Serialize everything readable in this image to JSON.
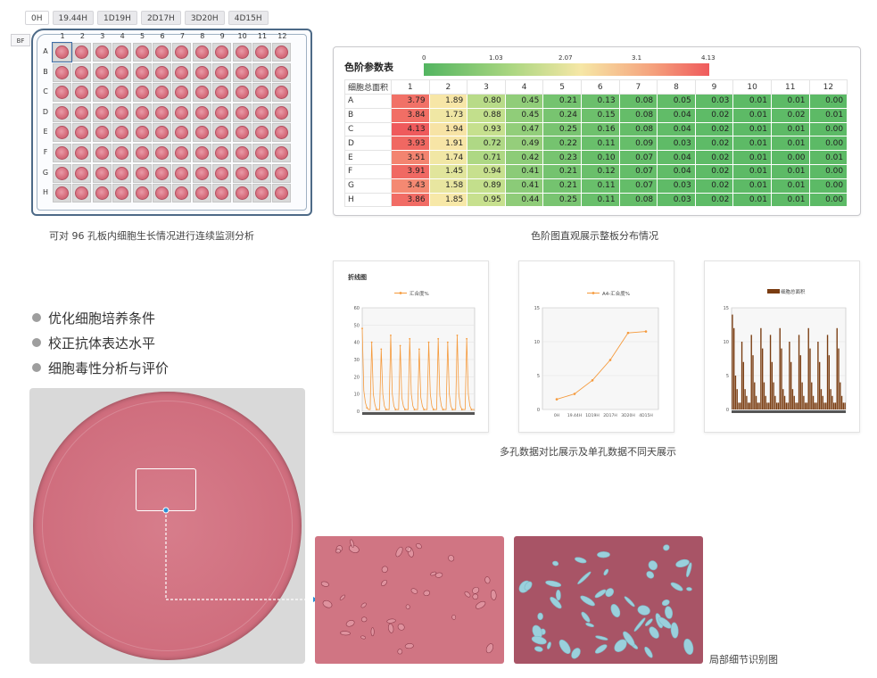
{
  "time_tabs": [
    "0H",
    "19.44H",
    "1D19H",
    "2D17H",
    "3D20H",
    "4D15H"
  ],
  "active_tab": 0,
  "bf_label": "BF",
  "plate": {
    "columns": [
      "1",
      "2",
      "3",
      "4",
      "5",
      "6",
      "7",
      "8",
      "9",
      "10",
      "11",
      "12"
    ],
    "rows": [
      "A",
      "B",
      "C",
      "D",
      "E",
      "F",
      "G",
      "H"
    ],
    "selected_well": "A1"
  },
  "captions": {
    "plate": "可对 96 孔板内细胞生长情况进行连续监测分析",
    "heatmap": "色阶图直观展示整板分布情况",
    "charts": "多孔数据对比展示及单孔数据不同天展示",
    "detail": "局部细节识别图"
  },
  "heatmap": {
    "title": "色阶参数表",
    "scale_ticks": [
      "0",
      "1.03",
      "2.07",
      "3.1",
      "4.13"
    ],
    "scale_max": 4.13,
    "corner_label": "细胞总面积",
    "columns": [
      "1",
      "2",
      "3",
      "4",
      "5",
      "6",
      "7",
      "8",
      "9",
      "10",
      "11",
      "12"
    ],
    "rows": [
      {
        "label": "A",
        "values": [
          "3.79",
          "1.89",
          "0.80",
          "0.45",
          "0.21",
          "0.13",
          "0.08",
          "0.05",
          "0.03",
          "0.01",
          "0.01",
          "0.00"
        ]
      },
      {
        "label": "B",
        "values": [
          "3.84",
          "1.73",
          "0.88",
          "0.45",
          "0.24",
          "0.15",
          "0.08",
          "0.04",
          "0.02",
          "0.01",
          "0.02",
          "0.01"
        ]
      },
      {
        "label": "C",
        "values": [
          "4.13",
          "1.94",
          "0.93",
          "0.47",
          "0.25",
          "0.16",
          "0.08",
          "0.04",
          "0.02",
          "0.01",
          "0.01",
          "0.00"
        ]
      },
      {
        "label": "D",
        "values": [
          "3.93",
          "1.91",
          "0.72",
          "0.49",
          "0.22",
          "0.11",
          "0.09",
          "0.03",
          "0.02",
          "0.01",
          "0.01",
          "0.00"
        ]
      },
      {
        "label": "E",
        "values": [
          "3.51",
          "1.74",
          "0.71",
          "0.42",
          "0.23",
          "0.10",
          "0.07",
          "0.04",
          "0.02",
          "0.01",
          "0.00",
          "0.01"
        ]
      },
      {
        "label": "F",
        "values": [
          "3.91",
          "1.45",
          "0.94",
          "0.41",
          "0.21",
          "0.12",
          "0.07",
          "0.04",
          "0.02",
          "0.01",
          "0.01",
          "0.00"
        ]
      },
      {
        "label": "G",
        "values": [
          "3.43",
          "1.58",
          "0.89",
          "0.41",
          "0.21",
          "0.11",
          "0.07",
          "0.03",
          "0.02",
          "0.01",
          "0.01",
          "0.00"
        ]
      },
      {
        "label": "H",
        "values": [
          "3.86",
          "1.85",
          "0.95",
          "0.44",
          "0.25",
          "0.11",
          "0.08",
          "0.03",
          "0.02",
          "0.01",
          "0.01",
          "0.00"
        ]
      }
    ]
  },
  "bullets": [
    "优化细胞培养条件",
    "校正抗体表达水平",
    "细胞毒性分析与评价"
  ],
  "colors": {
    "accent_orange": "#f59a3c",
    "bar_brown": "#7a3d12",
    "well_pink": "#d8707f",
    "scale_low": "#53b561",
    "scale_mid": "#f6e7a6",
    "scale_high": "#ef5a5c",
    "overlay_cyan": "#9ad0dc"
  },
  "chart_data": [
    {
      "type": "line",
      "title": "折线图",
      "legend": "汇合度%",
      "ylim": [
        0,
        60
      ],
      "yticks": [
        "0",
        "10",
        "20",
        "30",
        "40",
        "50",
        "60"
      ],
      "series": [
        {
          "name": "汇合度%",
          "values": [
            48,
            12,
            5,
            2,
            1,
            1,
            40,
            10,
            4,
            1,
            1,
            1,
            36,
            10,
            3,
            1,
            1,
            1,
            44,
            10,
            3,
            1,
            1,
            1,
            38,
            8,
            3,
            1,
            1,
            1,
            42,
            10,
            3,
            1,
            1,
            1,
            36,
            8,
            3,
            1,
            1,
            1,
            40,
            10,
            3,
            1,
            1,
            1,
            42,
            9,
            3,
            1,
            1,
            1,
            40,
            10,
            3,
            1,
            1,
            1,
            44,
            10,
            3,
            1,
            1,
            1,
            42,
            10,
            3,
            1,
            1,
            1
          ]
        }
      ]
    },
    {
      "type": "line",
      "legend": "A4-汇合度%",
      "ylim": [
        0,
        15
      ],
      "yticks": [
        "0",
        "5",
        "10",
        "15"
      ],
      "categories": [
        "0H",
        "19.44H",
        "1D19H",
        "2D17H",
        "3D20H",
        "4D15H"
      ],
      "series": [
        {
          "name": "A4-汇合度%",
          "values": [
            1.5,
            2.3,
            4.3,
            7.3,
            11.3,
            11.5
          ]
        }
      ]
    },
    {
      "type": "bar",
      "legend": "细胞总面积",
      "ylim": [
        0,
        15
      ],
      "yticks": [
        "0",
        "5",
        "10",
        "15"
      ],
      "series": [
        {
          "name": "细胞总面积",
          "values": [
            14,
            12,
            5,
            3,
            1,
            1,
            10,
            7,
            3,
            2,
            1,
            1,
            11,
            8,
            4,
            2,
            1,
            1,
            12,
            9,
            4,
            2,
            1,
            1,
            11,
            7,
            4,
            2,
            1,
            1,
            12,
            9,
            3,
            2,
            1,
            1,
            10,
            7,
            3,
            2,
            1,
            1,
            11,
            8,
            4,
            2,
            1,
            1,
            12,
            9,
            4,
            2,
            1,
            1,
            10,
            7,
            3,
            2,
            1,
            1,
            11,
            8,
            3,
            2,
            1,
            1,
            12,
            9,
            4,
            2,
            1,
            1
          ]
        }
      ]
    }
  ]
}
